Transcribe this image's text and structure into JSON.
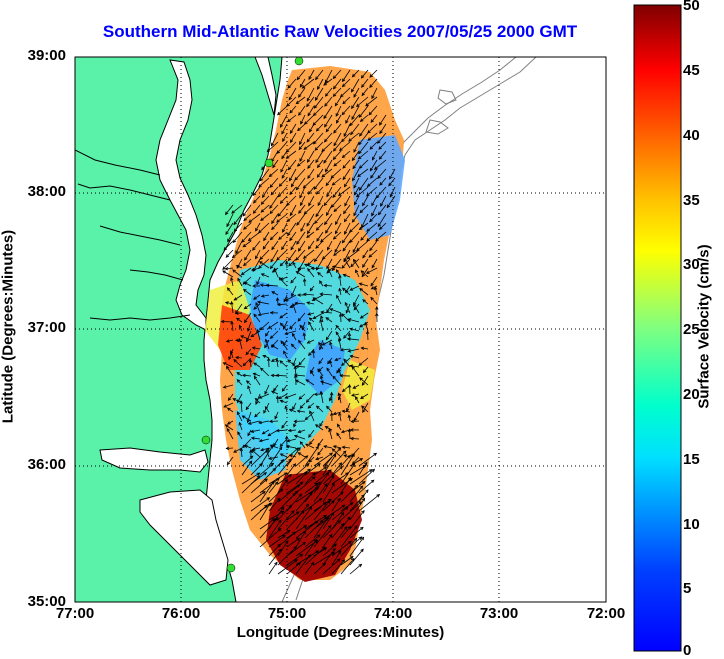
{
  "title": "Southern Mid-Atlantic Raw Velocities 2007/05/25 2000 GMT",
  "axes": {
    "xlabel": "Longitude (Degrees:Minutes)",
    "ylabel": "Latitude (Degrees:Minutes)",
    "xticks": [
      "77:00",
      "76:00",
      "75:00",
      "74:00",
      "73:00",
      "72:00"
    ],
    "yticks": [
      "39:00",
      "38:00",
      "37:00",
      "36:00",
      "35:00"
    ],
    "xlim": [
      -77,
      -72
    ],
    "ylim": [
      35,
      39
    ],
    "grid": "dotted"
  },
  "colorbar": {
    "label": "Surface Velocity (cm/s)",
    "ticks": [
      "50",
      "45",
      "40",
      "35",
      "30",
      "25",
      "20",
      "15",
      "10",
      "5",
      "0"
    ],
    "range": [
      0,
      50
    ],
    "colormap": "jet"
  },
  "colors": {
    "land": "#5af2a8",
    "title": "#0000ff",
    "coastline": "#000000",
    "bathymetry": "#808080",
    "stations": "#33dd33"
  },
  "legend_icons": [
    "hf-radar-station-icon"
  ]
}
